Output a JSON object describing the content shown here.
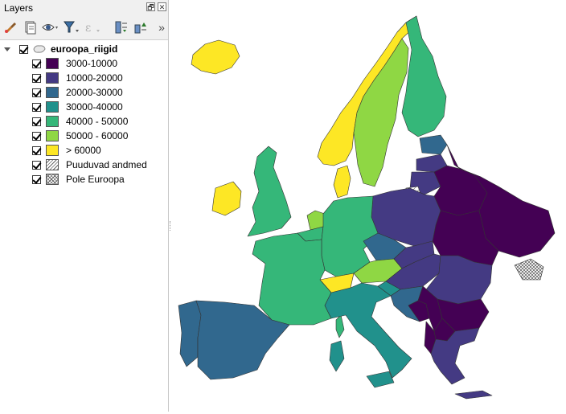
{
  "panel": {
    "title": "Layers",
    "float_button": "🗗",
    "close_button": "✕",
    "more_tools": "»"
  },
  "layer": {
    "name": "euroopa_riigid"
  },
  "legend": [
    {
      "label": "3000-10000",
      "color": "#440154",
      "hatch": "none"
    },
    {
      "label": "10000-20000",
      "color": "#443a83",
      "hatch": "none"
    },
    {
      "label": "20000-30000",
      "color": "#31688e",
      "hatch": "none"
    },
    {
      "label": "30000-40000",
      "color": "#21918c",
      "hatch": "none"
    },
    {
      "label": "40000 - 50000",
      "color": "#35b779",
      "hatch": "none"
    },
    {
      "label": "50000 - 60000",
      "color": "#8fd744",
      "hatch": "none"
    },
    {
      "label": "> 60000",
      "color": "#fde725",
      "hatch": "none"
    },
    {
      "label": "Puuduvad andmed",
      "color": "#ffffff",
      "hatch": "diagonal"
    },
    {
      "label": "Pole Euroopa",
      "color": "#ffffff",
      "hatch": "cross"
    }
  ],
  "colors": {
    "class1": "#440154",
    "class2": "#443a83",
    "class3": "#31688e",
    "class4": "#21918c",
    "class5": "#35b779",
    "class6": "#8fd744",
    "class7": "#fde725",
    "border": "#333333"
  }
}
